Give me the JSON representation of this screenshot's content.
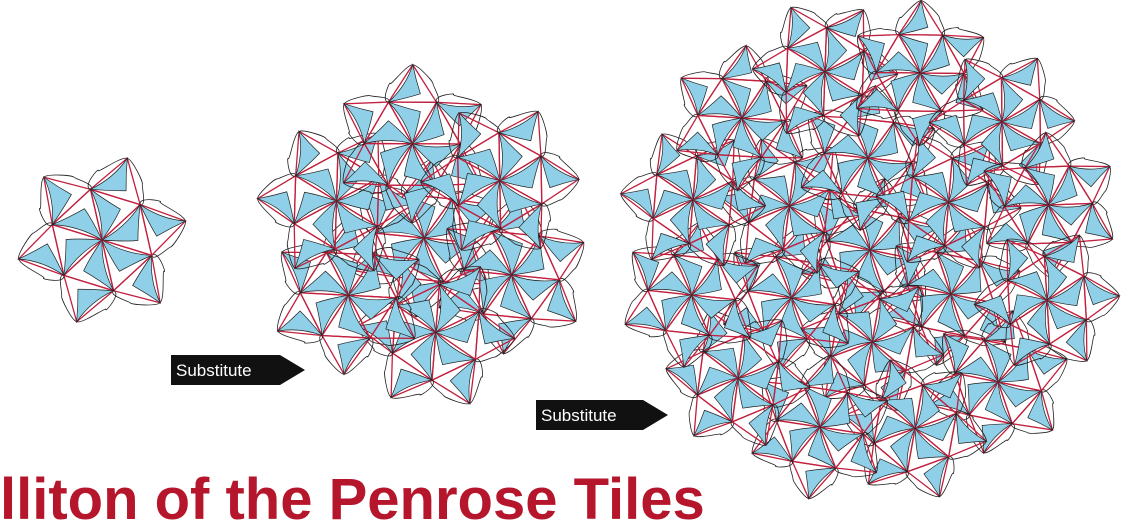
{
  "colors": {
    "frame": "#c2203f",
    "fill": "#8fd0e8",
    "tile_stroke": "#222222",
    "arrow": "#111111",
    "title": "#b5162c"
  },
  "arrows": [
    {
      "label": "Substitute"
    },
    {
      "label": "Substitute"
    }
  ],
  "title_partial": "lliton of the Penrose Tiles"
}
